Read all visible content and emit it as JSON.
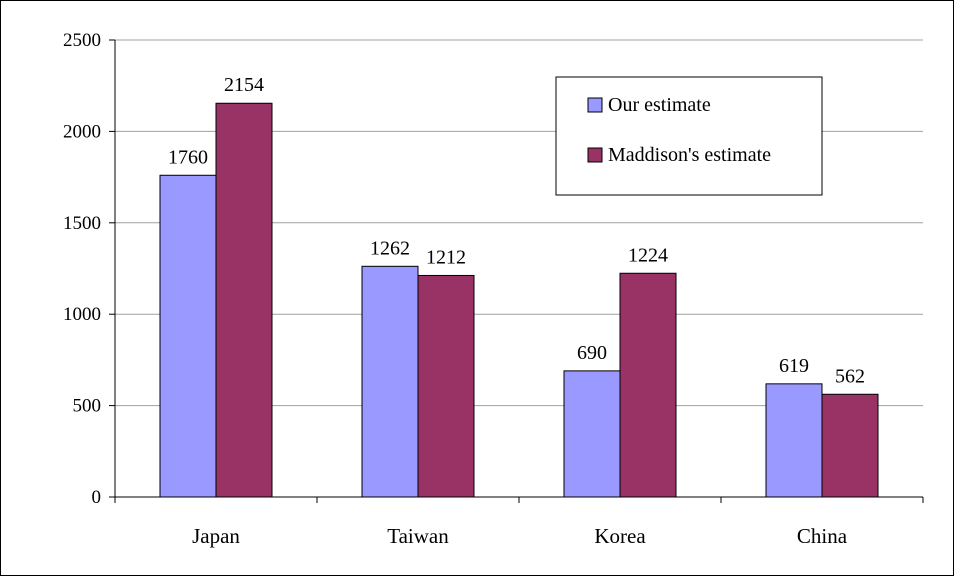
{
  "chart_data": {
    "type": "bar",
    "categories": [
      "Japan",
      "Taiwan",
      "Korea",
      "China"
    ],
    "series": [
      {
        "name": "Our estimate",
        "values": [
          1760,
          1262,
          690,
          619
        ],
        "labels": [
          "1760",
          "1262",
          "690",
          "619"
        ],
        "color": "#9999ff"
      },
      {
        "name": "Maddison's estimate",
        "values": [
          2154,
          1212,
          1224,
          562
        ],
        "labels": [
          "2154",
          "1212",
          "1224",
          "562"
        ],
        "color": "#993366"
      }
    ],
    "ylim": [
      0,
      2500
    ],
    "yticks": [
      0,
      500,
      1000,
      1500,
      2000,
      2500
    ],
    "grid": true,
    "legend": "top-right"
  }
}
